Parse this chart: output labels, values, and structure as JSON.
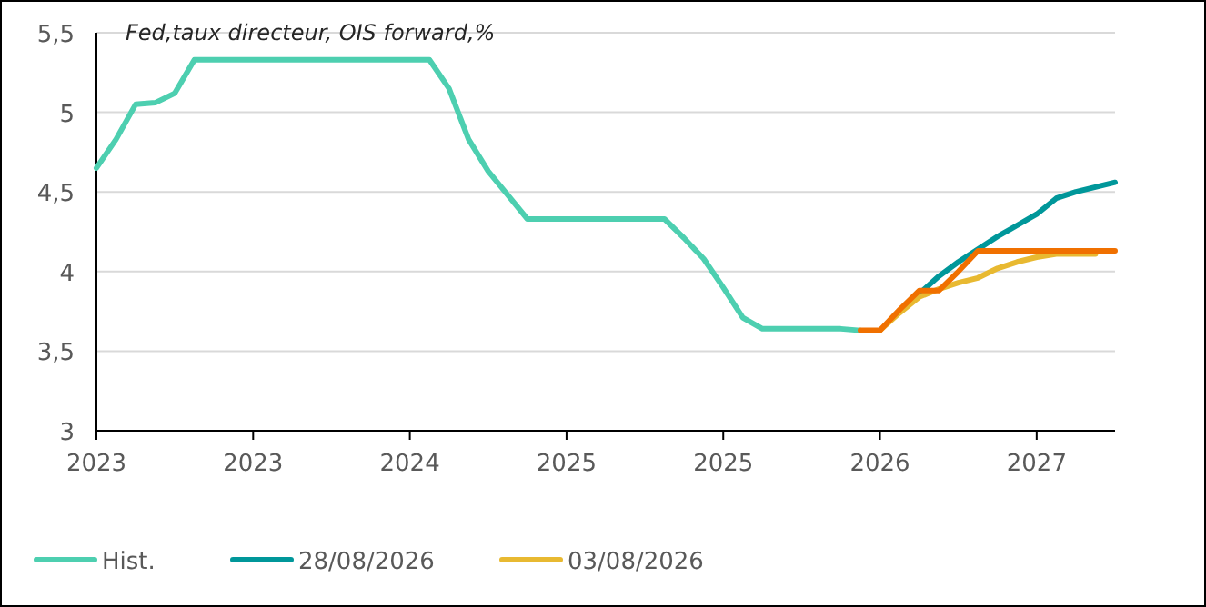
{
  "chart_data": {
    "type": "line",
    "title": "Fed,taux directeur, OIS forward,%",
    "categories": [
      "2023",
      null,
      null,
      null,
      null,
      null,
      null,
      null,
      "2023",
      null,
      null,
      null,
      null,
      null,
      null,
      null,
      "2024",
      null,
      null,
      null,
      null,
      null,
      null,
      null,
      "2025",
      null,
      null,
      null,
      null,
      null,
      null,
      null,
      "2025",
      null,
      null,
      null,
      null,
      null,
      null,
      null,
      "2026",
      null,
      null,
      null,
      null,
      null,
      null,
      null,
      "2027",
      null,
      null,
      null,
      null
    ],
    "ylim": [
      3,
      5.5
    ],
    "yticks": [
      {
        "value": 3,
        "label": "3"
      },
      {
        "value": 3.5,
        "label": "3,5"
      },
      {
        "value": 4,
        "label": "4"
      },
      {
        "value": 4.5,
        "label": "4,5"
      },
      {
        "value": 5,
        "label": "5"
      },
      {
        "value": 5.5,
        "label": "5,5"
      }
    ],
    "grid": "y",
    "legend": "bottom",
    "marker": "none",
    "line_style": "solid",
    "series": [
      {
        "name": "Hist.",
        "color": "#4dcfb0",
        "values": [
          4.65,
          4.83,
          5.05,
          5.06,
          5.12,
          5.33,
          5.33,
          5.33,
          5.33,
          5.33,
          5.33,
          5.33,
          5.33,
          5.33,
          5.33,
          5.33,
          5.33,
          5.33,
          5.15,
          4.83,
          4.63,
          4.48,
          4.33,
          4.33,
          4.33,
          4.33,
          4.33,
          4.33,
          4.33,
          4.33,
          4.21,
          4.08,
          3.9,
          3.71,
          3.64,
          3.64,
          3.64,
          3.64,
          3.64,
          3.63,
          null,
          null,
          null,
          null,
          null,
          null,
          null,
          null,
          null,
          null,
          null,
          null,
          null
        ]
      },
      {
        "name": "28/08/2026",
        "color": "#00979a",
        "values": [
          null,
          null,
          null,
          null,
          null,
          null,
          null,
          null,
          null,
          null,
          null,
          null,
          null,
          null,
          null,
          null,
          null,
          null,
          null,
          null,
          null,
          null,
          null,
          null,
          null,
          null,
          null,
          null,
          null,
          null,
          null,
          null,
          null,
          null,
          null,
          null,
          null,
          null,
          null,
          null,
          null,
          null,
          3.86,
          3.97,
          4.06,
          4.14,
          4.22,
          4.29,
          4.36,
          4.46,
          4.5,
          4.53,
          4.56
        ]
      },
      {
        "name": "03/08/2026",
        "color": "#e8b931",
        "values": [
          null,
          null,
          null,
          null,
          null,
          null,
          null,
          null,
          null,
          null,
          null,
          null,
          null,
          null,
          null,
          null,
          null,
          null,
          null,
          null,
          null,
          null,
          null,
          null,
          null,
          null,
          null,
          null,
          null,
          null,
          null,
          null,
          null,
          null,
          null,
          null,
          null,
          null,
          null,
          null,
          3.63,
          3.74,
          3.84,
          3.89,
          3.93,
          3.96,
          4.02,
          4.06,
          4.09,
          4.11,
          4.11,
          4.11,
          null
        ]
      },
      {
        "color": "#f07000",
        "values": [
          null,
          null,
          null,
          null,
          null,
          null,
          null,
          null,
          null,
          null,
          null,
          null,
          null,
          null,
          null,
          null,
          null,
          null,
          null,
          null,
          null,
          null,
          null,
          null,
          null,
          null,
          null,
          null,
          null,
          null,
          null,
          null,
          null,
          null,
          null,
          null,
          null,
          null,
          null,
          3.63,
          3.63,
          3.76,
          3.88,
          3.88,
          4.0,
          4.13,
          4.13,
          4.13,
          4.13,
          4.13,
          4.13,
          4.13,
          4.13
        ]
      }
    ]
  }
}
